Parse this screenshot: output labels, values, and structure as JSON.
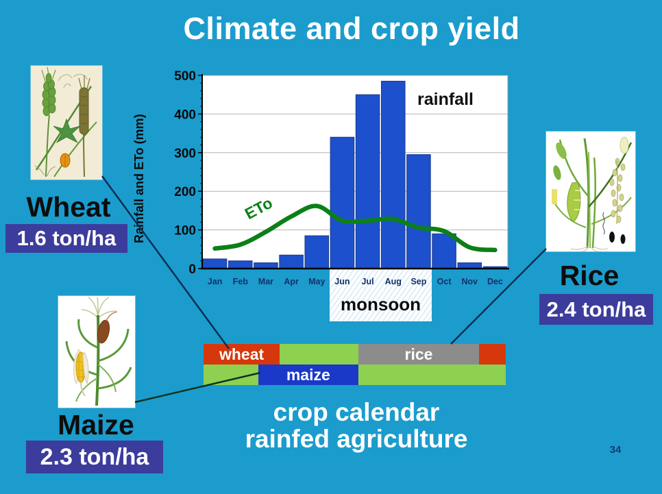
{
  "slide": {
    "title": "Climate and crop yield",
    "caption_line1": "crop calendar",
    "caption_line2": "rainfed agriculture",
    "page_number": "34",
    "background_color": "#1b9ccd"
  },
  "chart_data": {
    "type": "bar",
    "title": "",
    "categories": [
      "Jan",
      "Feb",
      "Mar",
      "Apr",
      "May",
      "Jun",
      "Jul",
      "Aug",
      "Sep",
      "Oct",
      "Nov",
      "Dec"
    ],
    "series": [
      {
        "name": "rainfall",
        "type": "bar",
        "color": "#1d50cc",
        "values": [
          25,
          20,
          15,
          35,
          85,
          340,
          450,
          485,
          295,
          90,
          15,
          5
        ]
      },
      {
        "name": "ETo",
        "type": "line",
        "color": "#0c8018",
        "values": [
          52,
          62,
          95,
          135,
          162,
          124,
          124,
          128,
          106,
          97,
          55,
          48
        ]
      }
    ],
    "xlabel": "",
    "ylabel": "Rainfall and ETo (mm)",
    "ylim": [
      0,
      500
    ],
    "ytick_step": 100,
    "grid": true,
    "legend_position": "none",
    "annotations": {
      "bar_series_label": "rainfall",
      "line_series_label": "ETo",
      "monsoon_label": "monsoon",
      "monsoon_span_months": [
        "Jun",
        "Sep"
      ]
    }
  },
  "calendar": {
    "rows": [
      {
        "segments": [
          {
            "label": "wheat",
            "color": "#d6380c",
            "width_pct": 25.2
          },
          {
            "label": "",
            "color": "#8ed050",
            "width_pct": 26.0
          },
          {
            "label": "rice",
            "color": "#8c8c8c",
            "width_pct": 40.0
          },
          {
            "label": "",
            "color": "#d6380c",
            "width_pct": 8.8
          }
        ]
      },
      {
        "segments": [
          {
            "label": "",
            "color": "#8ed050",
            "width_pct": 18.1
          },
          {
            "label": "maize",
            "color": "#1a39c8",
            "width_pct": 33.1
          },
          {
            "label": "",
            "color": "#8ed050",
            "width_pct": 48.8
          }
        ]
      }
    ]
  },
  "crops": {
    "wheat": {
      "name": "Wheat",
      "yield": "1.6 ton/ha"
    },
    "rice": {
      "name": "Rice",
      "yield": "2.4 ton/ha"
    },
    "maize": {
      "name": "Maize",
      "yield": "2.3 ton/ha"
    }
  },
  "colors": {
    "background": "#1b9ccd",
    "bar_blue": "#1d50cc",
    "eto_green": "#0c8018",
    "yield_box_purple": "#3c3c9c",
    "calendar_red": "#d6380c",
    "calendar_green": "#8ed050",
    "calendar_gray": "#8c8c8c",
    "calendar_blue": "#1a39c8",
    "axis_text": "#0a0a0a",
    "month_text": "#15306b"
  }
}
